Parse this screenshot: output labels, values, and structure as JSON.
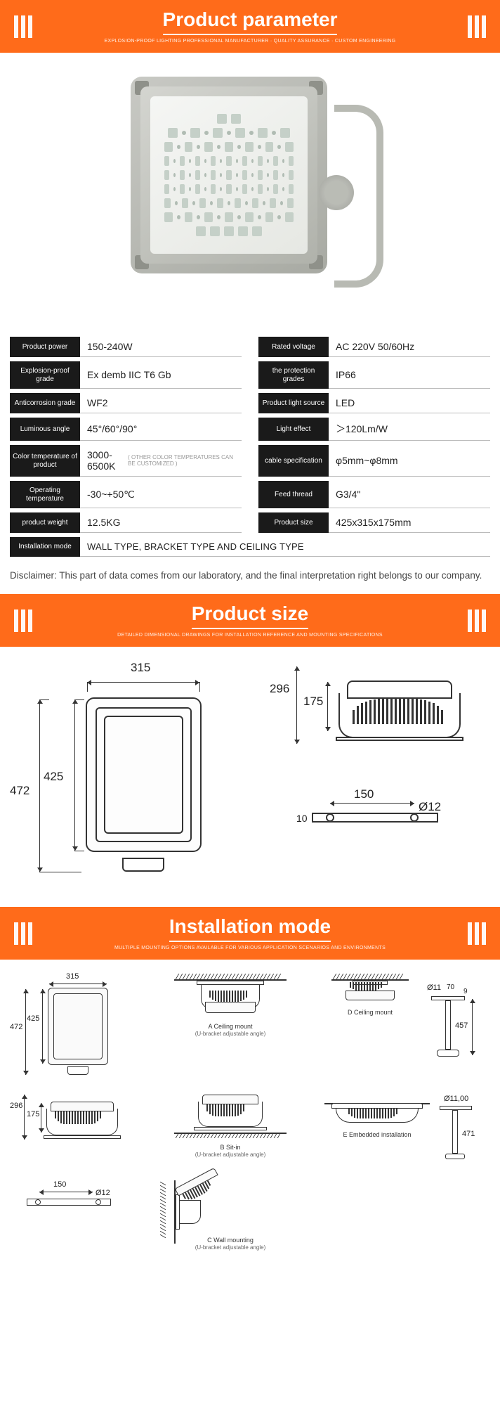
{
  "banners": {
    "parameter": {
      "title": "Product parameter",
      "sub": "EXPLOSION-PROOF LIGHTING PROFESSIONAL MANUFACTURER · QUALITY ASSURANCE · CUSTOM ENGINEERING"
    },
    "size": {
      "title": "Product size",
      "sub": "DETAILED DIMENSIONAL DRAWINGS FOR INSTALLATION REFERENCE AND MOUNTING SPECIFICATIONS"
    },
    "install": {
      "title": "Installation mode",
      "sub": "MULTIPLE MOUNTING OPTIONS AVAILABLE FOR VARIOUS APPLICATION SCENARIOS AND ENVIRONMENTS"
    }
  },
  "colors": {
    "banner_bg": "#ff6b1a",
    "label_bg": "#1a1a1a"
  },
  "params_left": [
    {
      "label": "Product power",
      "value": "150-240W"
    },
    {
      "label": "Explosion-proof grade",
      "value": "Ex demb IIC T6 Gb"
    },
    {
      "label": "Anticorrosion grade",
      "value": "WF2"
    },
    {
      "label": "Luminous angle",
      "value": "45°/60°/90°"
    },
    {
      "label": "Color temperature of product",
      "value": "3000-6500K",
      "note": "( OTHER COLOR TEMPERATURES CAN BE CUSTOMIZED )"
    },
    {
      "label": "Operating temperature",
      "value": "-30~+50℃"
    },
    {
      "label": "product weight",
      "value": "12.5KG"
    }
  ],
  "params_right": [
    {
      "label": "Rated voltage",
      "value": "AC 220V  50/60Hz"
    },
    {
      "label": "the protection grades",
      "value": "IP66"
    },
    {
      "label": "Product light source",
      "value": "LED"
    },
    {
      "label": "Light effect",
      "value": "＞120Lm/W"
    },
    {
      "label": "cable specification",
      "value": "φ5mm~φ8mm"
    },
    {
      "label": "Feed thread",
      "value": "G3/4\""
    },
    {
      "label": "Product size",
      "value": "425x315x175mm"
    }
  ],
  "param_full": {
    "label": "Installation mode",
    "value": "WALL TYPE, BRACKET TYPE AND CEILING TYPE"
  },
  "disclaimer": "Disclaimer: This part of data comes from our laboratory, and the final interpretation right belongs to our company.",
  "dims": {
    "front_w": "315",
    "front_h": "425",
    "front_total_h": "472",
    "side_h1": "296",
    "side_h2": "175",
    "base_w": "150",
    "base_hole": "Ø12",
    "base_thk": "10"
  },
  "install": {
    "a": {
      "title": "A  Ceiling mount",
      "sub": "(U-bracket adjustable angle)"
    },
    "b": {
      "title": "B  Sit-in",
      "sub": "(U-bracket adjustable angle)"
    },
    "c": {
      "title": "C  Wall mounting",
      "sub": "(U-bracket adjustable angle)"
    },
    "d": {
      "title": "D  Ceiling mount"
    },
    "e": {
      "title": "E  Embedded installation"
    },
    "dims": {
      "topleft_w": "315",
      "topleft_h1": "425",
      "topleft_h2": "472",
      "midleft_h1": "296",
      "midleft_h2": "175",
      "botleft_w": "150",
      "botleft_hole": "Ø12",
      "d_hole": "Ø11",
      "d_span": "70",
      "d_gap": "9",
      "d_drop": "457",
      "e_hole": "Ø11,00",
      "e_drop": "471"
    }
  }
}
